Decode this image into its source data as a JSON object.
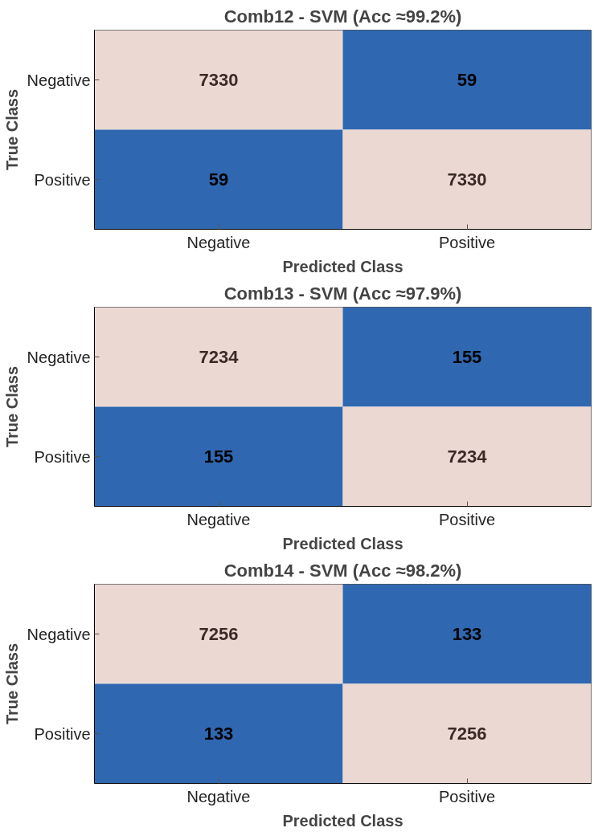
{
  "chart_data": [
    {
      "type": "heatmap",
      "title": "Comb12 - SVM (Acc ≈99.2%)",
      "xlabel": "Predicted Class",
      "ylabel": "True Class",
      "categories": [
        "Negative",
        "Positive"
      ],
      "y_categories": [
        "Negative",
        "Positive"
      ],
      "cells": [
        [
          7330,
          59
        ],
        [
          59,
          7330
        ]
      ],
      "colors": [
        "#2f67b1",
        "#ecd8d3"
      ],
      "data_labels": true
    },
    {
      "type": "heatmap",
      "title": "Comb13 - SVM (Acc ≈97.9%)",
      "xlabel": "Predicted Class",
      "ylabel": "True Class",
      "categories": [
        "Negative",
        "Positive"
      ],
      "y_categories": [
        "Negative",
        "Positive"
      ],
      "cells": [
        [
          7234,
          155
        ],
        [
          155,
          7234
        ]
      ],
      "colors": [
        "#2f67b1",
        "#ecd8d3"
      ],
      "data_labels": true
    },
    {
      "type": "heatmap",
      "title": "Comb14 - SVM (Acc ≈98.2%)",
      "xlabel": "Predicted Class",
      "ylabel": "True Class",
      "categories": [
        "Negative",
        "Positive"
      ],
      "y_categories": [
        "Negative",
        "Positive"
      ],
      "cells": [
        [
          7256,
          133
        ],
        [
          133,
          7256
        ]
      ],
      "colors": [
        "#2f67b1",
        "#ecd8d3"
      ],
      "data_labels": true
    }
  ]
}
